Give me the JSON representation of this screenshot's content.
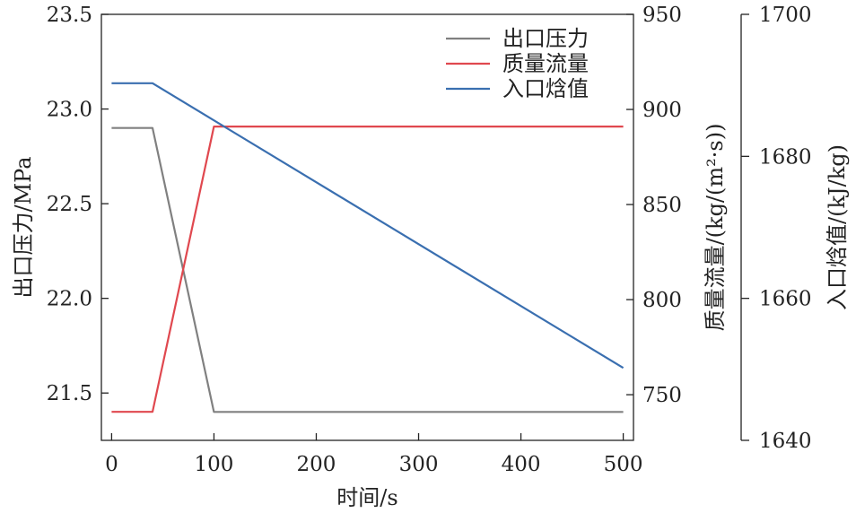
{
  "chart_data": {
    "type": "line",
    "xlabel": "时间/s",
    "x_ticks": [
      "0",
      "100",
      "200",
      "300",
      "400",
      "500"
    ],
    "xlim": [
      -10,
      510
    ],
    "axes": [
      {
        "id": "pressure",
        "label": "出口压力/MPa",
        "side": "left",
        "ylim": [
          21.25,
          23.5
        ],
        "ticks": [
          "21.5",
          "22.0",
          "22.5",
          "23.0",
          "23.5"
        ],
        "tick_values": [
          21.5,
          22.0,
          22.5,
          23.0,
          23.5
        ]
      },
      {
        "id": "flow",
        "label": "质量流量/(kg/(m²·s))",
        "side": "right",
        "ylim": [
          726,
          950
        ],
        "ticks": [
          "750",
          "800",
          "850",
          "900",
          "950"
        ],
        "tick_values": [
          750,
          800,
          850,
          900,
          950
        ]
      },
      {
        "id": "enthalpy",
        "label": "入口焓值/(kJ/kg)",
        "side": "right-outer",
        "ylim": [
          1640,
          1700
        ],
        "ticks": [
          "1640",
          "1660",
          "1680",
          "1700"
        ],
        "tick_values": [
          1640,
          1660,
          1680,
          1700
        ]
      }
    ],
    "series": [
      {
        "name": "出口压力",
        "axis": "pressure",
        "color": "#808080",
        "x": [
          0,
          40,
          100,
          500
        ],
        "y": [
          22.9,
          22.9,
          21.4,
          21.4
        ]
      },
      {
        "name": "质量流量",
        "axis": "flow",
        "color": "#e0484f",
        "x": [
          0,
          40,
          100,
          500
        ],
        "y": [
          741,
          741,
          891,
          891
        ]
      },
      {
        "name": "入口焓值",
        "axis": "enthalpy",
        "color": "#3a6fb0",
        "x": [
          0,
          40,
          500
        ],
        "y": [
          1690.3,
          1690.3,
          1650.2
        ]
      }
    ],
    "legend_position": "top-right",
    "grid": false
  }
}
